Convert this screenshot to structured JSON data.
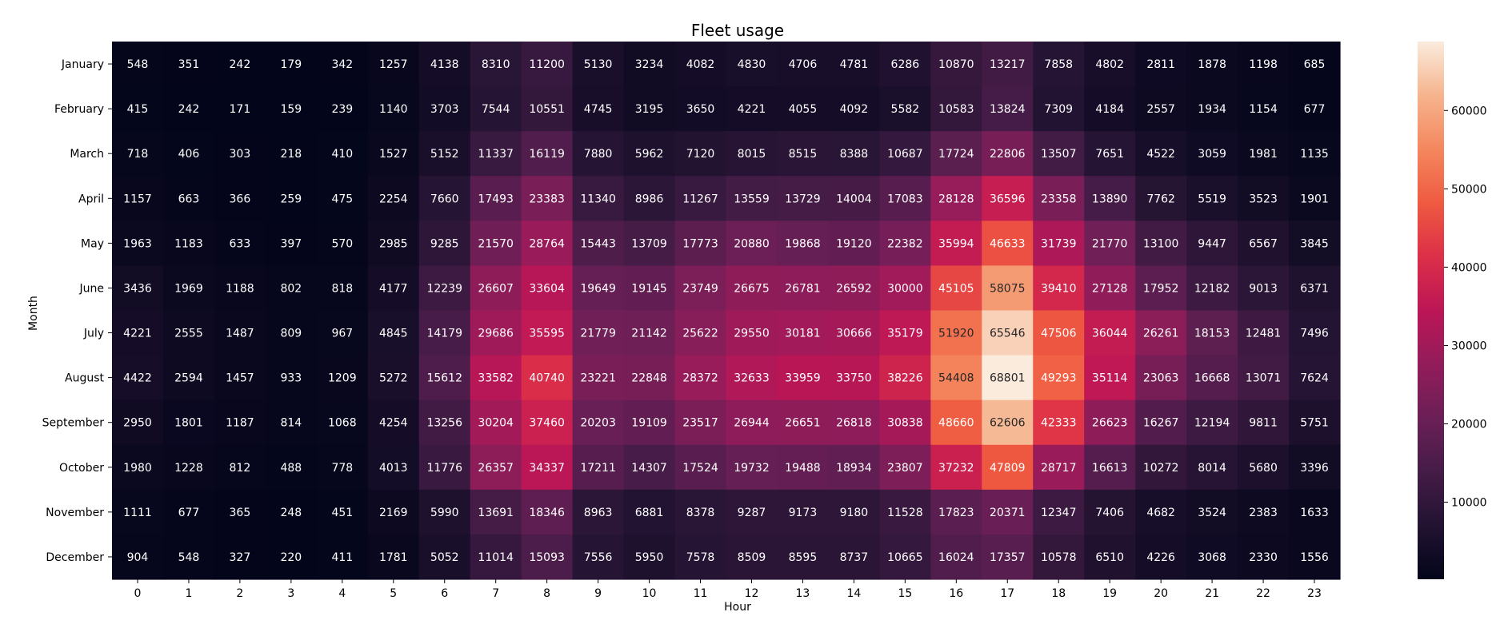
{
  "chart_data": {
    "type": "heatmap",
    "title": "Fleet usage",
    "xlabel": "Hour",
    "ylabel": "Month",
    "x": [
      0,
      1,
      2,
      3,
      4,
      5,
      6,
      7,
      8,
      9,
      10,
      11,
      12,
      13,
      14,
      15,
      16,
      17,
      18,
      19,
      20,
      21,
      22,
      23
    ],
    "y": [
      "January",
      "February",
      "March",
      "April",
      "May",
      "June",
      "July",
      "August",
      "September",
      "October",
      "November",
      "December"
    ],
    "values": [
      [
        548,
        351,
        242,
        179,
        342,
        1257,
        4138,
        8310,
        11200,
        5130,
        3234,
        4082,
        4830,
        4706,
        4781,
        6286,
        10870,
        13217,
        7858,
        4802,
        2811,
        1878,
        1198,
        685
      ],
      [
        415,
        242,
        171,
        159,
        239,
        1140,
        3703,
        7544,
        10551,
        4745,
        3195,
        3650,
        4221,
        4055,
        4092,
        5582,
        10583,
        13824,
        7309,
        4184,
        2557,
        1934,
        1154,
        677
      ],
      [
        718,
        406,
        303,
        218,
        410,
        1527,
        5152,
        11337,
        16119,
        7880,
        5962,
        7120,
        8015,
        8515,
        8388,
        10687,
        17724,
        22806,
        13507,
        7651,
        4522,
        3059,
        1981,
        1135
      ],
      [
        1157,
        663,
        366,
        259,
        475,
        2254,
        7660,
        17493,
        23383,
        11340,
        8986,
        11267,
        13559,
        13729,
        14004,
        17083,
        28128,
        36596,
        23358,
        13890,
        7762,
        5519,
        3523,
        1901
      ],
      [
        1963,
        1183,
        633,
        397,
        570,
        2985,
        9285,
        21570,
        28764,
        15443,
        13709,
        17773,
        20880,
        19868,
        19120,
        22382,
        35994,
        46633,
        31739,
        21770,
        13100,
        9447,
        6567,
        3845
      ],
      [
        3436,
        1969,
        1188,
        802,
        818,
        4177,
        12239,
        26607,
        33604,
        19649,
        19145,
        23749,
        26675,
        26781,
        26592,
        30000,
        45105,
        58075,
        39410,
        27128,
        17952,
        12182,
        9013,
        6371
      ],
      [
        4221,
        2555,
        1487,
        809,
        967,
        4845,
        14179,
        29686,
        35595,
        21779,
        21142,
        25622,
        29550,
        30181,
        30666,
        35179,
        51920,
        65546,
        47506,
        36044,
        26261,
        18153,
        12481,
        7496
      ],
      [
        4422,
        2594,
        1457,
        933,
        1209,
        5272,
        15612,
        33582,
        40740,
        23221,
        22848,
        28372,
        32633,
        33959,
        33750,
        38226,
        54408,
        68801,
        49293,
        35114,
        23063,
        16668,
        13071,
        7624
      ],
      [
        2950,
        1801,
        1187,
        814,
        1068,
        4254,
        13256,
        30204,
        37460,
        20203,
        19109,
        23517,
        26944,
        26651,
        26818,
        30838,
        48660,
        62606,
        42333,
        26623,
        16267,
        12194,
        9811,
        5751
      ],
      [
        1980,
        1228,
        812,
        488,
        778,
        4013,
        11776,
        26357,
        34337,
        17211,
        14307,
        17524,
        19732,
        19488,
        18934,
        23807,
        37232,
        47809,
        28717,
        16613,
        10272,
        8014,
        5680,
        3396
      ],
      [
        1111,
        677,
        365,
        248,
        451,
        2169,
        5990,
        13691,
        18346,
        8963,
        6881,
        8378,
        9287,
        9173,
        9180,
        11528,
        17823,
        20371,
        12347,
        7406,
        4682,
        3524,
        2383,
        1633
      ],
      [
        904,
        548,
        327,
        220,
        411,
        1781,
        5052,
        11014,
        15093,
        7556,
        5950,
        7578,
        8509,
        8595,
        8737,
        10665,
        16024,
        17357,
        10578,
        6510,
        4226,
        3068,
        2330,
        1556
      ]
    ],
    "colorbar": {
      "colormap": "rocket",
      "vmin": 159,
      "vmax": 68801,
      "ticks": [
        10000,
        20000,
        30000,
        40000,
        50000,
        60000
      ]
    }
  }
}
